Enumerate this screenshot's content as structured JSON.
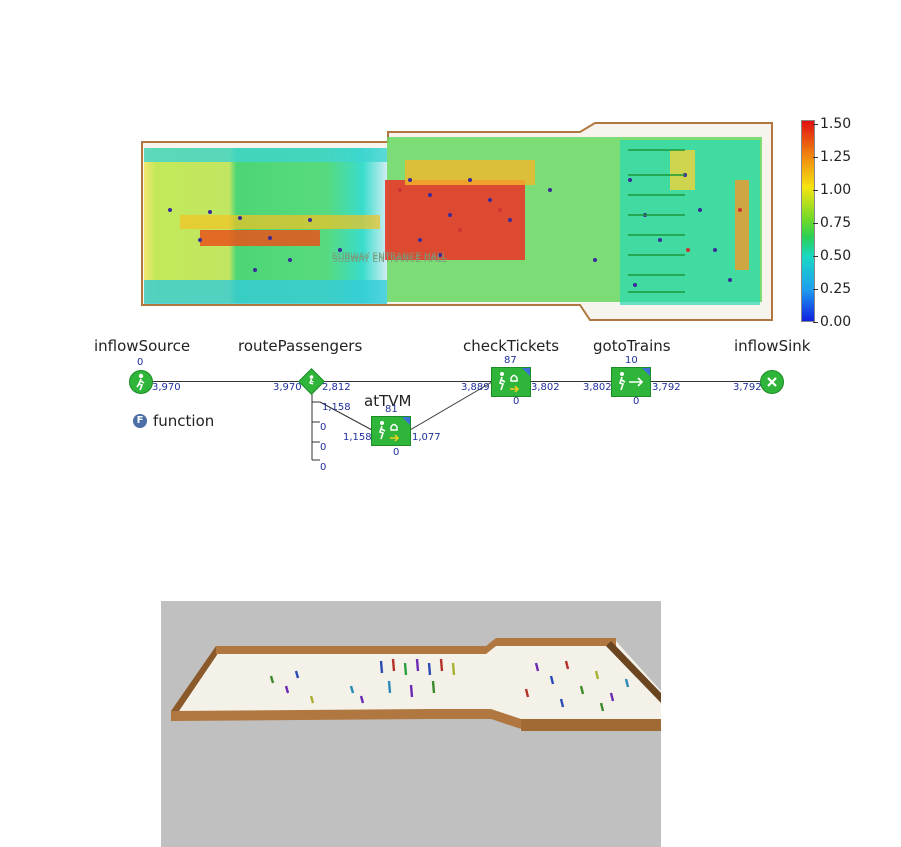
{
  "heatmap": {
    "floor_label": "SUBWAY ENTRANCE HALL",
    "legend": [
      "1.50",
      "1.25",
      "1.00",
      "0.75",
      "0.50",
      "0.25",
      "0.00"
    ]
  },
  "flowchart": {
    "inflowSource": {
      "label": "inflowSource",
      "top": "0",
      "out": "3,970"
    },
    "routePassengers": {
      "label": "routePassengers",
      "in": "3,970",
      "out": "2,812",
      "branches": [
        "1,158",
        "0",
        "0",
        "0"
      ]
    },
    "atTVM": {
      "label": "atTVM",
      "top": "81",
      "in": "1,158",
      "out": "1,077",
      "bottom": "0"
    },
    "checkTickets": {
      "label": "checkTickets",
      "top": "87",
      "in": "3,889",
      "out": "3,802",
      "bottom": "0"
    },
    "gotoTrains": {
      "label": "gotoTrains",
      "top": "10",
      "in": "3,802",
      "out": "3,792",
      "bottom": "0"
    },
    "inflowSink": {
      "label": "inflowSink",
      "in": "3,792"
    },
    "function_label": "function",
    "function_icon": "F"
  },
  "colors": {
    "node_green": "#2fb53a",
    "wall_brown": "#b07840",
    "view_bg": "#c0c0c0",
    "number_blue": "#1f2f9a"
  },
  "icons": [
    "pedestrian-source-icon",
    "route-diamond-icon",
    "ticket-service-icon",
    "exit-arrow-icon",
    "sink-x-icon",
    "function-icon"
  ]
}
